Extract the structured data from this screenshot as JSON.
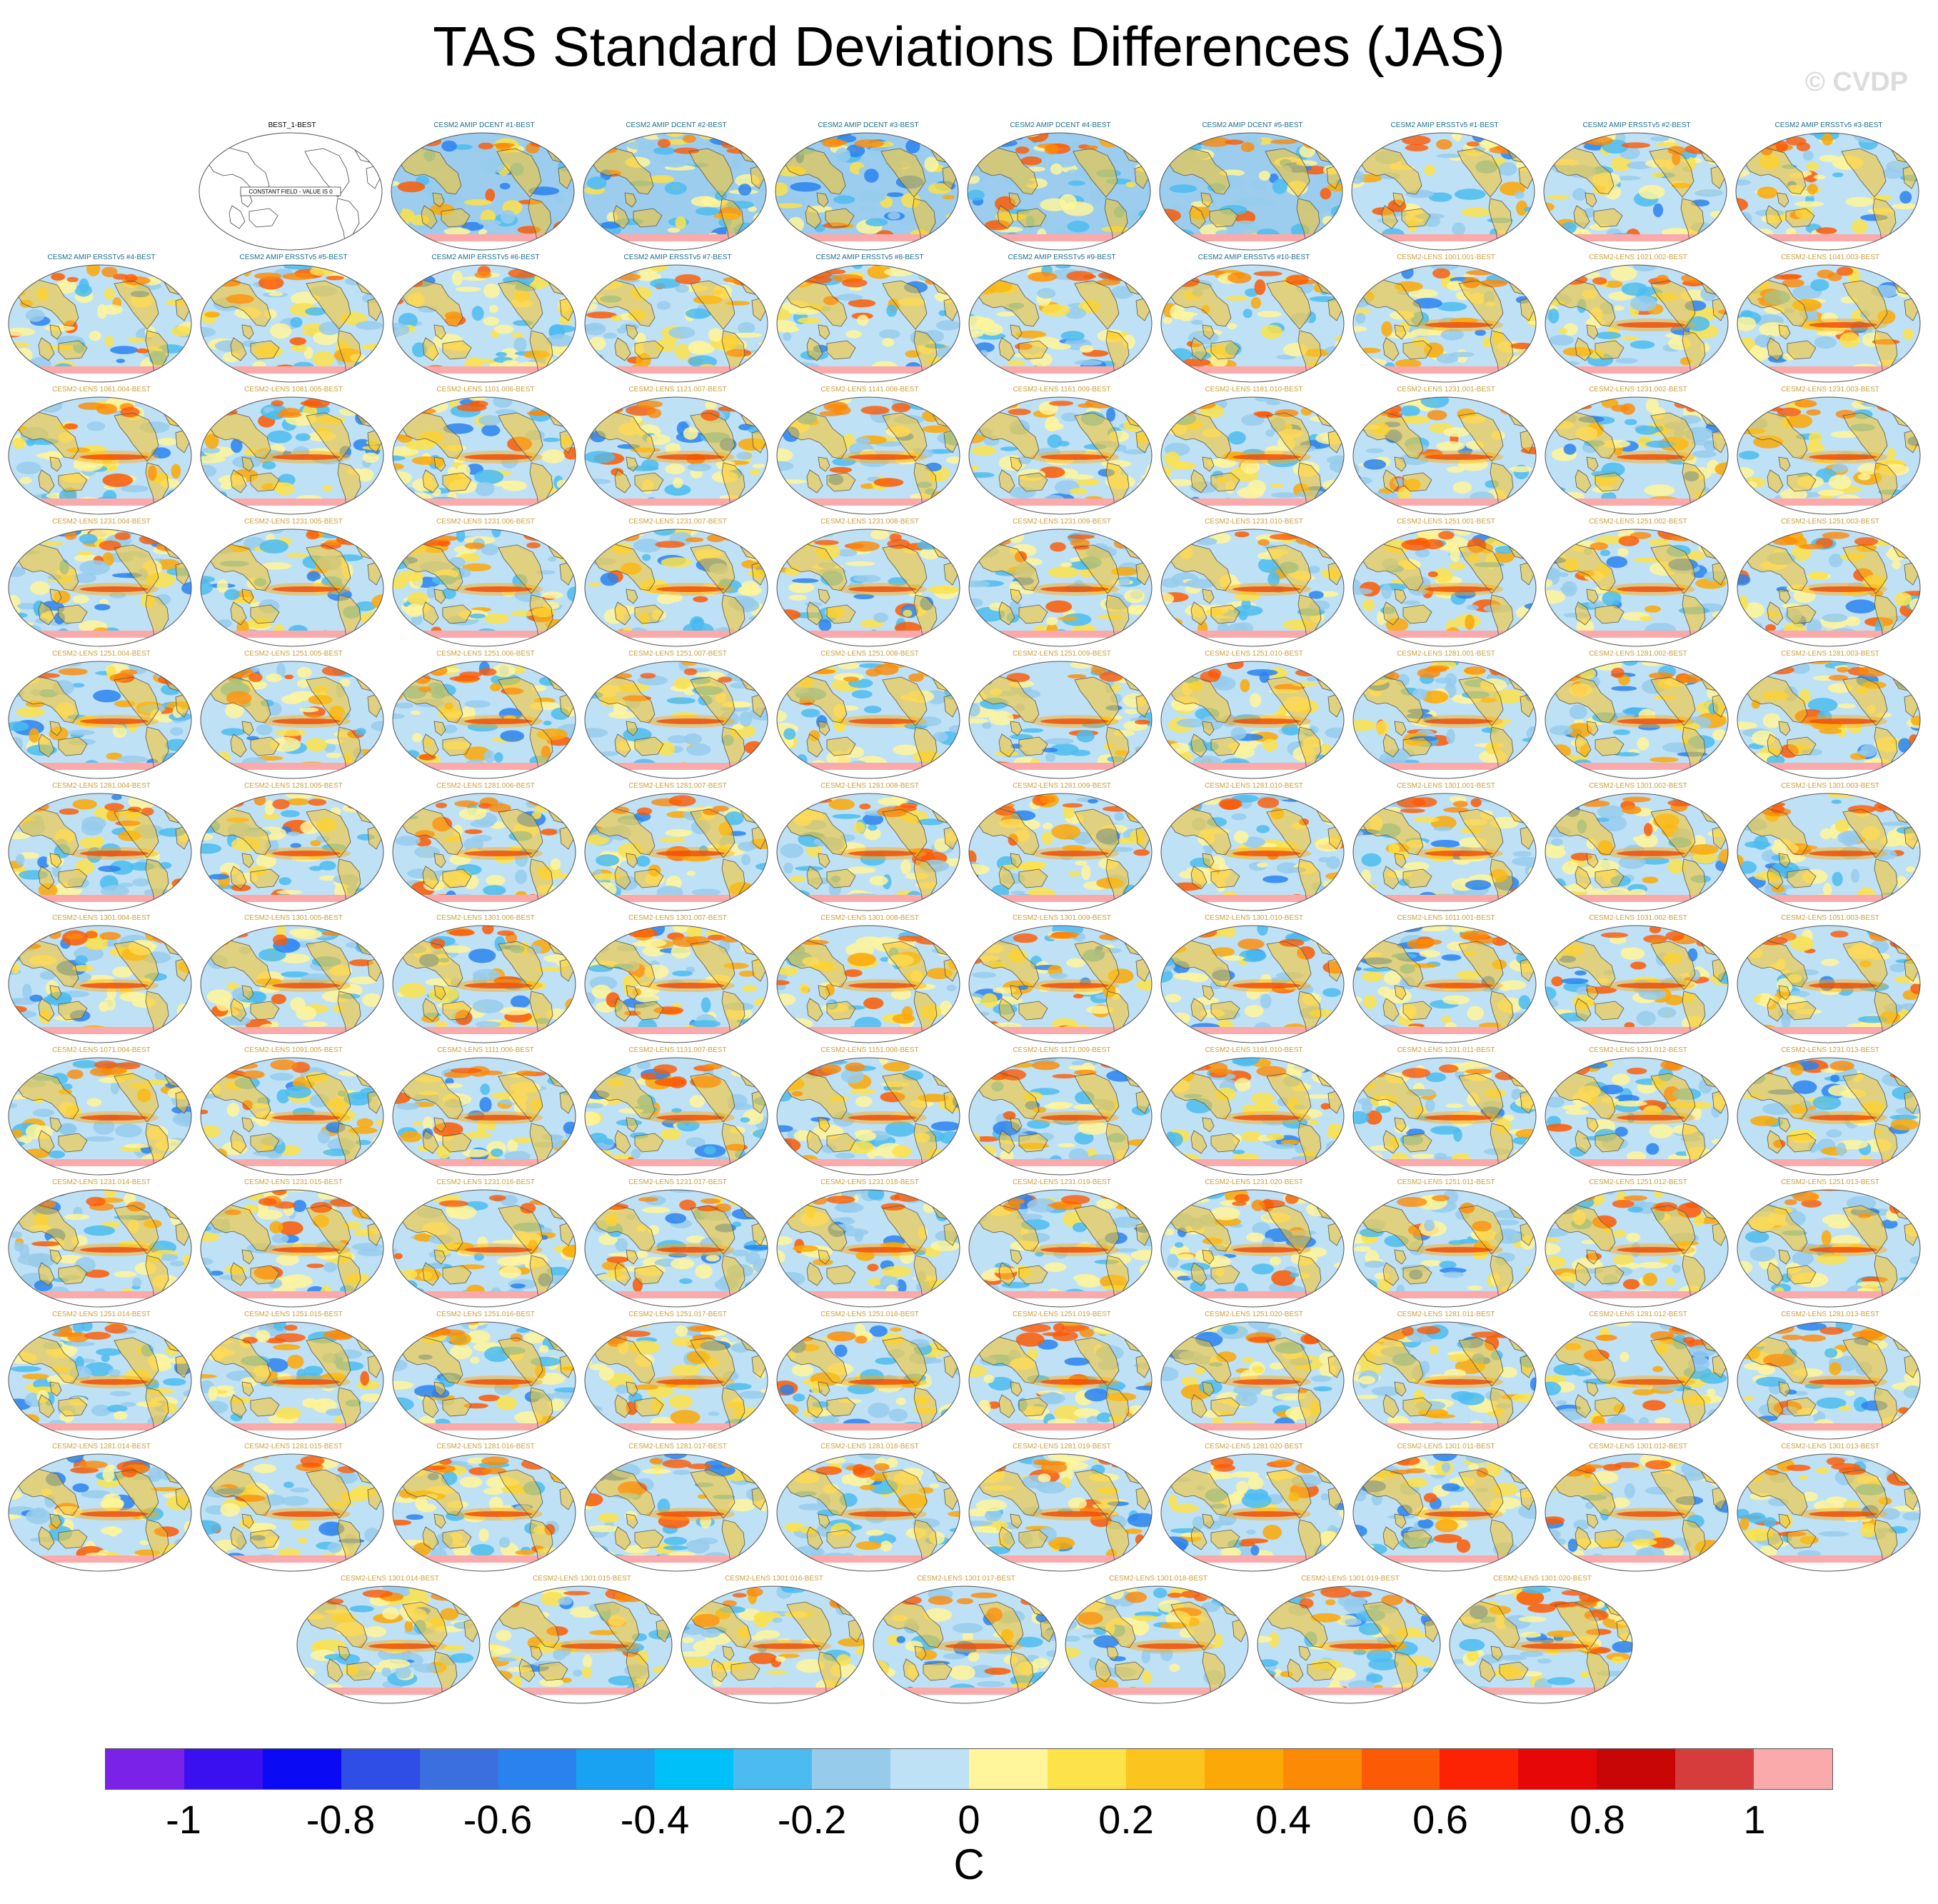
{
  "title": "TAS Standard Deviations Differences (JAS)",
  "credit": "© CVDP",
  "chart_data": {
    "type": "heatmap",
    "title": "TAS Standard Deviations Differences (JAS)",
    "projection": "global map panels",
    "colorbar": {
      "unit": "C",
      "range": [
        -1.1,
        1.1
      ],
      "tick_labels": [
        "-1",
        "-0.8",
        "-0.6",
        "-0.4",
        "-0.2",
        "0",
        "0.2",
        "0.4",
        "0.6",
        "0.8",
        "1"
      ],
      "tick_values": [
        -1,
        -0.8,
        -0.6,
        -0.4,
        -0.2,
        0,
        0.2,
        0.4,
        0.6,
        0.8,
        1
      ],
      "colors": [
        "#7a22e8",
        "#3a10f0",
        "#0a0af5",
        "#2e4ee6",
        "#3b6fe0",
        "#2a82ee",
        "#1aa2f2",
        "#00c0fa",
        "#4cbcf0",
        "#97cbec",
        "#bfe1f6",
        "#fff59a",
        "#fde24a",
        "#fcc41f",
        "#fca806",
        "#fc8a05",
        "#fc5a04",
        "#fc2204",
        "#e60808",
        "#c80606",
        "#d73c3c",
        "#faaaaa"
      ]
    },
    "panels": [
      {
        "label": "BEST_1-BEST",
        "note": "CONSTANT FIELD - VALUE IS 0",
        "kind": "constant"
      },
      {
        "label": "CESM2 AMIP DCENT #1-BEST",
        "kind": "amip_dcent"
      },
      {
        "label": "CESM2 AMIP DCENT #2-BEST",
        "kind": "amip_dcent"
      },
      {
        "label": "CESM2 AMIP DCENT #3-BEST",
        "kind": "amip_dcent"
      },
      {
        "label": "CESM2 AMIP DCENT #4-BEST",
        "kind": "amip_dcent"
      },
      {
        "label": "CESM2 AMIP DCENT #5-BEST",
        "kind": "amip_dcent"
      },
      {
        "label": "CESM2 AMIP ERSSTv5 #1-BEST",
        "kind": "amip_ersst"
      },
      {
        "label": "CESM2 AMIP ERSSTv5 #2-BEST",
        "kind": "amip_ersst"
      },
      {
        "label": "CESM2 AMIP ERSSTv5 #3-BEST",
        "kind": "amip_ersst"
      },
      {
        "label": "CESM2 AMIP ERSSTv5 #4-BEST",
        "kind": "amip_ersst"
      },
      {
        "label": "CESM2 AMIP ERSSTv5 #5-BEST",
        "kind": "amip_ersst"
      },
      {
        "label": "CESM2 AMIP ERSSTv5 #6-BEST",
        "kind": "amip_ersst"
      },
      {
        "label": "CESM2 AMIP ERSSTv5 #7-BEST",
        "kind": "amip_ersst"
      },
      {
        "label": "CESM2 AMIP ERSSTv5 #8-BEST",
        "kind": "amip_ersst"
      },
      {
        "label": "CESM2 AMIP ERSSTv5 #9-BEST",
        "kind": "amip_ersst"
      },
      {
        "label": "CESM2 AMIP ERSSTv5 #10-BEST",
        "kind": "amip_ersst"
      },
      {
        "label": "CESM2-LENS 1001.001-BEST",
        "kind": "lens"
      },
      {
        "label": "CESM2-LENS 1021.002-BEST",
        "kind": "lens"
      },
      {
        "label": "CESM2-LENS 1041.003-BEST",
        "kind": "lens"
      },
      {
        "label": "CESM2-LENS 1061.004-BEST",
        "kind": "lens"
      },
      {
        "label": "CESM2-LENS 1081.005-BEST",
        "kind": "lens"
      },
      {
        "label": "CESM2-LENS 1101.006-BEST",
        "kind": "lens"
      },
      {
        "label": "CESM2-LENS 1121.007-BEST",
        "kind": "lens"
      },
      {
        "label": "CESM2-LENS 1141.008-BEST",
        "kind": "lens"
      },
      {
        "label": "CESM2-LENS 1161.009-BEST",
        "kind": "lens"
      },
      {
        "label": "CESM2-LENS 1181.010-BEST",
        "kind": "lens"
      },
      {
        "label": "CESM2-LENS 1231.001-BEST",
        "kind": "lens"
      },
      {
        "label": "CESM2-LENS 1231.002-BEST",
        "kind": "lens"
      },
      {
        "label": "CESM2-LENS 1231.003-BEST",
        "kind": "lens"
      },
      {
        "label": "CESM2-LENS 1231.004-BEST",
        "kind": "lens"
      },
      {
        "label": "CESM2-LENS 1231.005-BEST",
        "kind": "lens"
      },
      {
        "label": "CESM2-LENS 1231.006-BEST",
        "kind": "lens"
      },
      {
        "label": "CESM2-LENS 1231.007-BEST",
        "kind": "lens"
      },
      {
        "label": "CESM2-LENS 1231.008-BEST",
        "kind": "lens"
      },
      {
        "label": "CESM2-LENS 1231.009-BEST",
        "kind": "lens"
      },
      {
        "label": "CESM2-LENS 1231.010-BEST",
        "kind": "lens"
      },
      {
        "label": "CESM2-LENS 1251.001-BEST",
        "kind": "lens"
      },
      {
        "label": "CESM2-LENS 1251.002-BEST",
        "kind": "lens"
      },
      {
        "label": "CESM2-LENS 1251.003-BEST",
        "kind": "lens"
      },
      {
        "label": "CESM2-LENS 1251.004-BEST",
        "kind": "lens"
      },
      {
        "label": "CESM2-LENS 1251.005-BEST",
        "kind": "lens"
      },
      {
        "label": "CESM2-LENS 1251.006-BEST",
        "kind": "lens"
      },
      {
        "label": "CESM2-LENS 1251.007-BEST",
        "kind": "lens"
      },
      {
        "label": "CESM2-LENS 1251.008-BEST",
        "kind": "lens"
      },
      {
        "label": "CESM2-LENS 1251.009-BEST",
        "kind": "lens"
      },
      {
        "label": "CESM2-LENS 1251.010-BEST",
        "kind": "lens"
      },
      {
        "label": "CESM2-LENS 1281.001-BEST",
        "kind": "lens"
      },
      {
        "label": "CESM2-LENS 1281.002-BEST",
        "kind": "lens"
      },
      {
        "label": "CESM2-LENS 1281.003-BEST",
        "kind": "lens"
      },
      {
        "label": "CESM2-LENS 1281.004-BEST",
        "kind": "lens"
      },
      {
        "label": "CESM2-LENS 1281.005-BEST",
        "kind": "lens"
      },
      {
        "label": "CESM2-LENS 1281.006-BEST",
        "kind": "lens"
      },
      {
        "label": "CESM2-LENS 1281.007-BEST",
        "kind": "lens"
      },
      {
        "label": "CESM2-LENS 1281.008-BEST",
        "kind": "lens"
      },
      {
        "label": "CESM2-LENS 1281.009-BEST",
        "kind": "lens"
      },
      {
        "label": "CESM2-LENS 1281.010-BEST",
        "kind": "lens"
      },
      {
        "label": "CESM2-LENS 1301.001-BEST",
        "kind": "lens"
      },
      {
        "label": "CESM2-LENS 1301.002-BEST",
        "kind": "lens"
      },
      {
        "label": "CESM2-LENS 1301.003-BEST",
        "kind": "lens"
      },
      {
        "label": "CESM2-LENS 1301.004-BEST",
        "kind": "lens"
      },
      {
        "label": "CESM2-LENS 1301.005-BEST",
        "kind": "lens"
      },
      {
        "label": "CESM2-LENS 1301.006-BEST",
        "kind": "lens"
      },
      {
        "label": "CESM2-LENS 1301.007-BEST",
        "kind": "lens"
      },
      {
        "label": "CESM2-LENS 1301.008-BEST",
        "kind": "lens"
      },
      {
        "label": "CESM2-LENS 1301.009-BEST",
        "kind": "lens"
      },
      {
        "label": "CESM2-LENS 1301.010-BEST",
        "kind": "lens"
      },
      {
        "label": "CESM2-LENS 1011.001-BEST",
        "kind": "lens"
      },
      {
        "label": "CESM2-LENS 1031.002-BEST",
        "kind": "lens"
      },
      {
        "label": "CESM2-LENS 1051.003-BEST",
        "kind": "lens"
      },
      {
        "label": "CESM2-LENS 1071.004-BEST",
        "kind": "lens"
      },
      {
        "label": "CESM2-LENS 1091.005-BEST",
        "kind": "lens"
      },
      {
        "label": "CESM2-LENS 1111.006-BEST",
        "kind": "lens"
      },
      {
        "label": "CESM2-LENS 1131.007-BEST",
        "kind": "lens"
      },
      {
        "label": "CESM2-LENS 1151.008-BEST",
        "kind": "lens"
      },
      {
        "label": "CESM2-LENS 1171.009-BEST",
        "kind": "lens"
      },
      {
        "label": "CESM2-LENS 1191.010-BEST",
        "kind": "lens"
      },
      {
        "label": "CESM2-LENS 1231.011-BEST",
        "kind": "lens"
      },
      {
        "label": "CESM2-LENS 1231.012-BEST",
        "kind": "lens"
      },
      {
        "label": "CESM2-LENS 1231.013-BEST",
        "kind": "lens"
      },
      {
        "label": "CESM2-LENS 1231.014-BEST",
        "kind": "lens"
      },
      {
        "label": "CESM2-LENS 1231.015-BEST",
        "kind": "lens"
      },
      {
        "label": "CESM2-LENS 1231.016-BEST",
        "kind": "lens"
      },
      {
        "label": "CESM2-LENS 1231.017-BEST",
        "kind": "lens"
      },
      {
        "label": "CESM2-LENS 1231.018-BEST",
        "kind": "lens"
      },
      {
        "label": "CESM2-LENS 1231.019-BEST",
        "kind": "lens"
      },
      {
        "label": "CESM2-LENS 1231.020-BEST",
        "kind": "lens"
      },
      {
        "label": "CESM2-LENS 1251.011-BEST",
        "kind": "lens"
      },
      {
        "label": "CESM2-LENS 1251.012-BEST",
        "kind": "lens"
      },
      {
        "label": "CESM2-LENS 1251.013-BEST",
        "kind": "lens"
      },
      {
        "label": "CESM2-LENS 1251.014-BEST",
        "kind": "lens"
      },
      {
        "label": "CESM2-LENS 1251.015-BEST",
        "kind": "lens"
      },
      {
        "label": "CESM2-LENS 1251.016-BEST",
        "kind": "lens"
      },
      {
        "label": "CESM2-LENS 1251.017-BEST",
        "kind": "lens"
      },
      {
        "label": "CESM2-LENS 1251.018-BEST",
        "kind": "lens"
      },
      {
        "label": "CESM2-LENS 1251.019-BEST",
        "kind": "lens"
      },
      {
        "label": "CESM2-LENS 1251.020-BEST",
        "kind": "lens"
      },
      {
        "label": "CESM2-LENS 1281.011-BEST",
        "kind": "lens"
      },
      {
        "label": "CESM2-LENS 1281.012-BEST",
        "kind": "lens"
      },
      {
        "label": "CESM2-LENS 1281.013-BEST",
        "kind": "lens"
      },
      {
        "label": "CESM2-LENS 1281.014-BEST",
        "kind": "lens"
      },
      {
        "label": "CESM2-LENS 1281.015-BEST",
        "kind": "lens"
      },
      {
        "label": "CESM2-LENS 1281.016-BEST",
        "kind": "lens"
      },
      {
        "label": "CESM2-LENS 1281.017-BEST",
        "kind": "lens"
      },
      {
        "label": "CESM2-LENS 1281.018-BEST",
        "kind": "lens"
      },
      {
        "label": "CESM2-LENS 1281.019-BEST",
        "kind": "lens"
      },
      {
        "label": "CESM2-LENS 1281.020-BEST",
        "kind": "lens"
      },
      {
        "label": "CESM2-LENS 1301.011-BEST",
        "kind": "lens"
      },
      {
        "label": "CESM2-LENS 1301.012-BEST",
        "kind": "lens"
      },
      {
        "label": "CESM2-LENS 1301.013-BEST",
        "kind": "lens"
      },
      {
        "label": "CESM2-LENS 1301.014-BEST",
        "kind": "lens"
      },
      {
        "label": "CESM2-LENS 1301.015-BEST",
        "kind": "lens"
      },
      {
        "label": "CESM2-LENS 1301.016-BEST",
        "kind": "lens"
      },
      {
        "label": "CESM2-LENS 1301.017-BEST",
        "kind": "lens"
      },
      {
        "label": "CESM2-LENS 1301.018-BEST",
        "kind": "lens"
      },
      {
        "label": "CESM2-LENS 1301.019-BEST",
        "kind": "lens"
      },
      {
        "label": "CESM2-LENS 1301.020-BEST",
        "kind": "lens"
      }
    ]
  },
  "label_colors": {
    "constant": "#000000",
    "amip_dcent": "#1b6e8c",
    "amip_ersst": "#1b6e8c",
    "lens": "#c8a23c"
  }
}
